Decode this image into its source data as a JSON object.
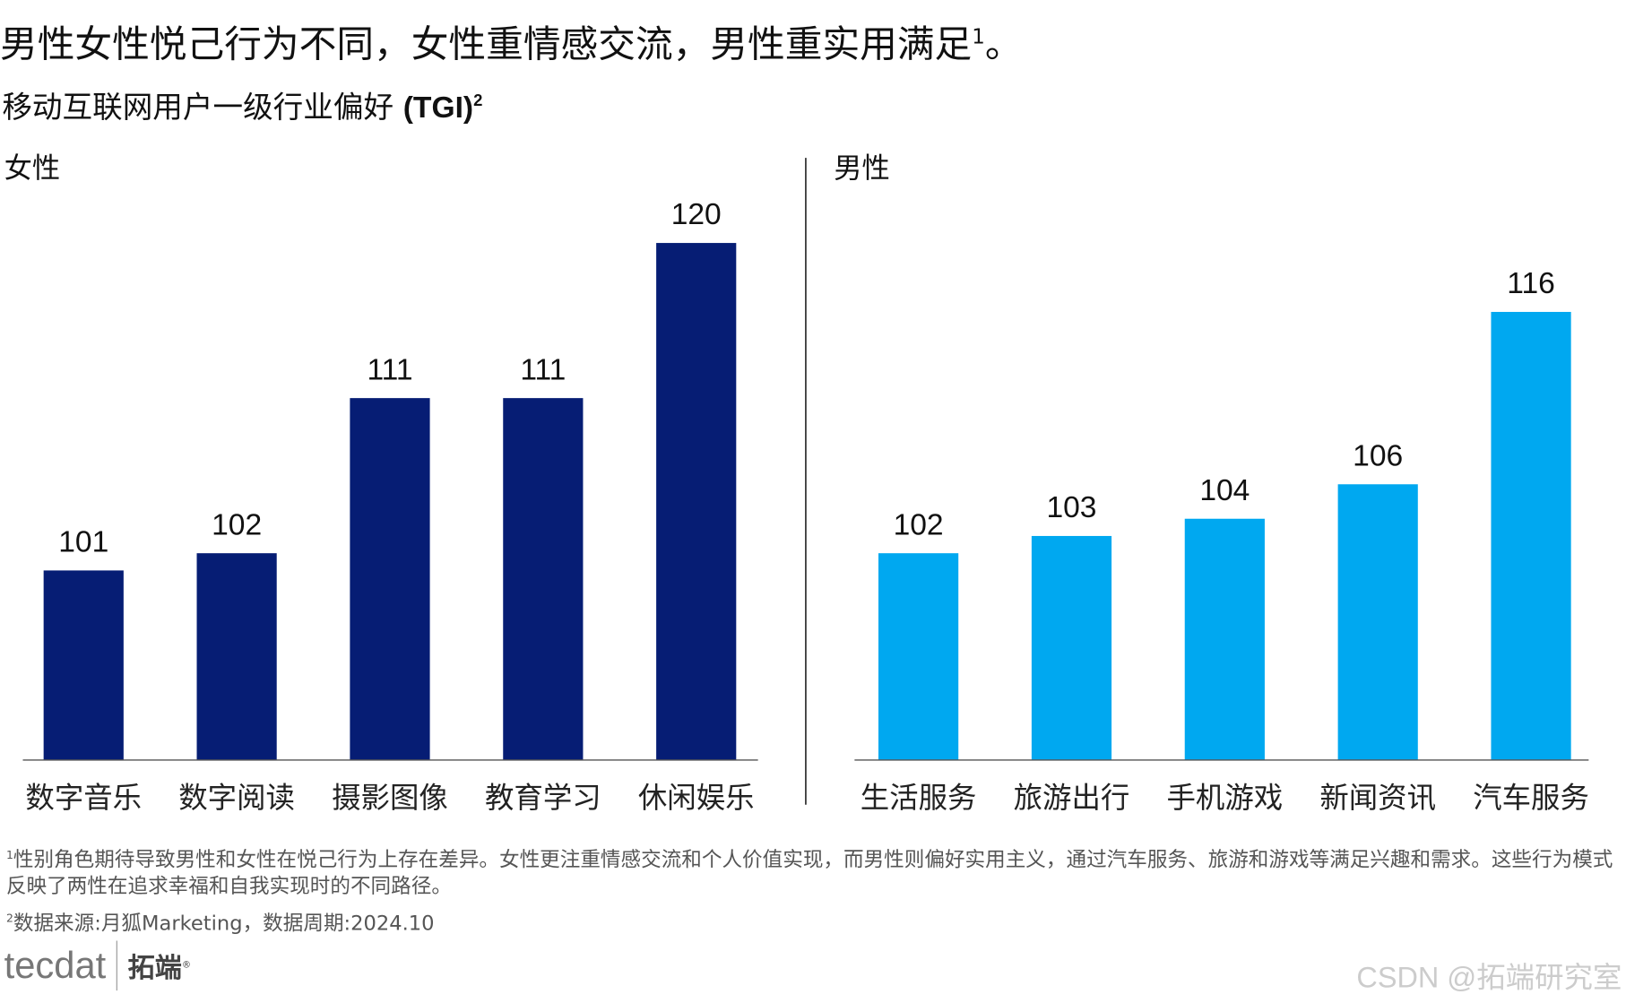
{
  "title": "男性女性悦己行为不同，女性重情感交流，男性重实用满足",
  "title_sup": "1",
  "title_end": "。",
  "subtitle": "移动互联网用户一级行业偏好",
  "subtitle_bold": "(TGI)",
  "subtitle_sup": "2",
  "footnotes": [
    {
      "sup": "1",
      "text": "性别角色期待导致男性和女性在悦己行为上存在差异。女性更注重情感交流和个人价值实现，而男性则偏好实用主义，通过汽车服务、旅游和游戏等满足兴趣和需求。这些行为模式反映了两性在追求幸福和自我实现时的不同路径。"
    },
    {
      "sup": "2",
      "text": "数据来源:月狐Marketing，数据周期:2024.10"
    }
  ],
  "logo": {
    "text": "tecdat",
    "cn": "拓端",
    "mark": "®"
  },
  "watermark": "CSDN @拓端研究室",
  "chart_data": [
    {
      "type": "bar",
      "title": "女性",
      "categories": [
        "数字音乐",
        "数字阅读",
        "摄影图像",
        "教育学习",
        "休闲娱乐"
      ],
      "values": [
        101,
        102,
        111,
        111,
        120
      ],
      "ylim": [
        90,
        121
      ],
      "color": "#061d74",
      "grid": false
    },
    {
      "type": "bar",
      "title": "男性",
      "categories": [
        "生活服务",
        "旅游出行",
        "手机游戏",
        "新闻资讯",
        "汽车服务"
      ],
      "values": [
        102,
        103,
        104,
        106,
        116
      ],
      "ylim": [
        90,
        121
      ],
      "color": "#00a8f0",
      "grid": false
    }
  ]
}
